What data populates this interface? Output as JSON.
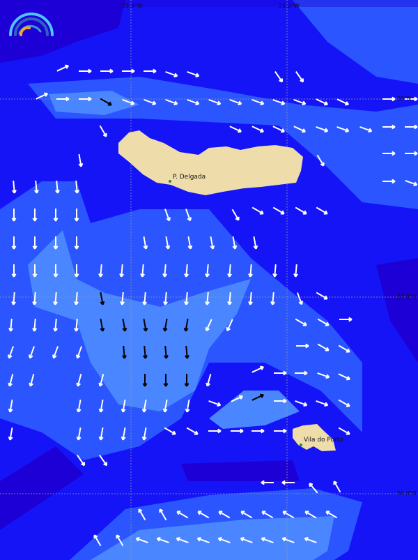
{
  "map": {
    "longitude_labels": [
      "25.8°W",
      "25.2°W"
    ],
    "latitude_labels": [
      "38°N",
      "37.4°N",
      "36.8°N"
    ],
    "places": [
      "P. Delgada",
      "Vila do Porto"
    ],
    "logo": "arc-logo-icon",
    "colors": {
      "deep": "#1d00d6",
      "mid": "#1414f7",
      "light": "#2a55ff",
      "lighter": "#4a86ff",
      "land": "#eedcaa",
      "arrow_white": "#ffffff",
      "arrow_black": "#000000"
    }
  }
}
